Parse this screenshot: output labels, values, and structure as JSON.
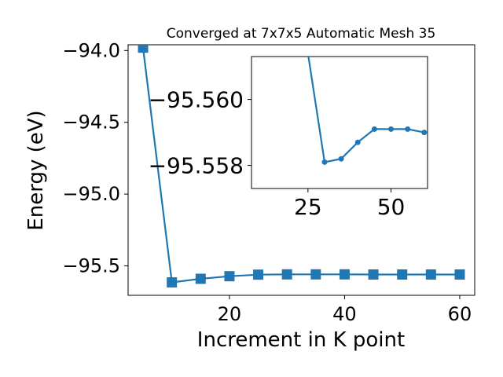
{
  "chart_data": [
    {
      "type": "line",
      "title": "Converged at 7x7x5 Automatic Mesh 35",
      "xlabel": "Increment in K point",
      "ylabel": "Energy (eV)",
      "x": [
        5,
        10,
        15,
        20,
        25,
        30,
        35,
        40,
        45,
        50,
        55,
        60
      ],
      "series": [
        {
          "values": [
            -93.98,
            -95.615,
            -95.59,
            -95.572,
            -95.561,
            -95.559,
            -95.559,
            -95.559,
            -95.56,
            -95.56,
            -95.56,
            -95.56
          ]
        }
      ],
      "xlim": [
        2.4,
        62.6
      ],
      "ylim": [
        -95.705,
        -93.96
      ],
      "xticks": [
        "20",
        "40",
        "60"
      ],
      "xtick_values": [
        20,
        40,
        60
      ],
      "yticks": [
        "−94.0",
        "−94.5",
        "−95.0",
        "−95.5"
      ],
      "ytick_values": [
        -94.0,
        -94.5,
        -95.0,
        -95.5
      ],
      "marker": "square",
      "color": "#1f77b4",
      "grid": false
    },
    {
      "type": "line",
      "x": [
        25,
        30,
        35,
        40,
        45,
        50,
        55,
        60
      ],
      "series": [
        {
          "values": [
            -95.5614,
            -95.5581,
            -95.5582,
            -95.5587,
            -95.5591,
            -95.5591,
            -95.5591,
            -95.559
          ]
        }
      ],
      "xlim": [
        8,
        61
      ],
      "ylim": [
        -95.5573,
        -95.5613
      ],
      "xticks": [
        "25",
        "50"
      ],
      "xtick_values": [
        25,
        50
      ],
      "yticks": [
        "−95.560",
        "−95.558"
      ],
      "ytick_values": [
        -95.56,
        -95.558
      ],
      "marker": "circle",
      "color": "#1f77b4",
      "grid": false
    }
  ]
}
